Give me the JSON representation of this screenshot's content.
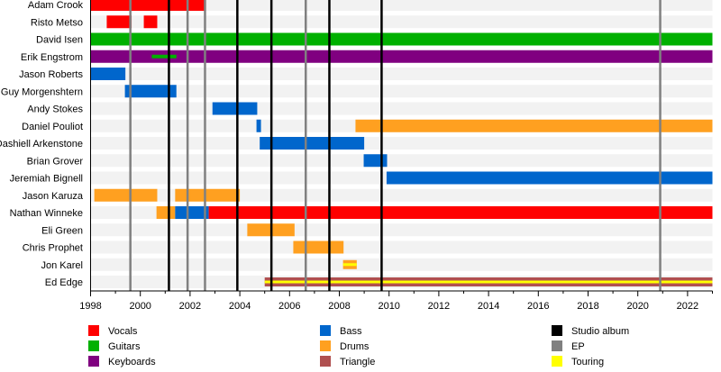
{
  "chart_data": {
    "type": "timeline",
    "xlim": [
      1998,
      2023
    ],
    "x_ticks": [
      "1998",
      "2000",
      "2002",
      "2004",
      "2006",
      "2008",
      "2010",
      "2012",
      "2014",
      "2016",
      "2018",
      "2020",
      "2022"
    ],
    "roles": {
      "Vocals": "#ff0000",
      "Guitars": "#00b000",
      "Keyboards": "#800080",
      "Bass": "#0066cc",
      "Drums": "#ffa020",
      "Triangle": "#b05050",
      "Touring": "#ffff00"
    },
    "members": [
      {
        "name": "Adam Crook",
        "periods": [
          {
            "role": "Vocals",
            "start": 1998.0,
            "end": 2002.64
          }
        ]
      },
      {
        "name": "Risto Metso",
        "periods": [
          {
            "role": "Vocals",
            "start": 1998.65,
            "end": 1999.65
          },
          {
            "role": "Vocals",
            "start": 2000.14,
            "end": 2000.68
          }
        ]
      },
      {
        "name": "David Isen",
        "periods": [
          {
            "role": "Guitars",
            "start": 1998.0,
            "end": 2023.0
          }
        ]
      },
      {
        "name": "Erik Engstrom",
        "periods": [
          {
            "role": "Keyboards",
            "start": 1998.0,
            "end": 2023.0
          },
          {
            "role": "Guitars",
            "start": 2000.46,
            "end": 2001.45,
            "thin": true
          }
        ]
      },
      {
        "name": "Jason Roberts",
        "periods": [
          {
            "role": "Bass",
            "start": 1998.0,
            "end": 1999.4
          }
        ]
      },
      {
        "name": "Guy Morgenshtern",
        "periods": [
          {
            "role": "Bass",
            "start": 1999.38,
            "end": 2001.45
          }
        ]
      },
      {
        "name": "Andy Stokes",
        "periods": [
          {
            "role": "Bass",
            "start": 2002.9,
            "end": 2004.7
          }
        ]
      },
      {
        "name": "Daniel Pouliot",
        "periods": [
          {
            "role": "Bass",
            "start": 2004.67,
            "end": 2004.85
          },
          {
            "role": "Drums",
            "start": 2008.65,
            "end": 2023.0
          }
        ]
      },
      {
        "name": "Dashiell Arkenstone",
        "periods": [
          {
            "role": "Bass",
            "start": 2004.8,
            "end": 2009.0
          }
        ]
      },
      {
        "name": "Brian Grover",
        "periods": [
          {
            "role": "Bass",
            "start": 2008.98,
            "end": 2009.92
          }
        ]
      },
      {
        "name": "Jeremiah Bignell",
        "periods": [
          {
            "role": "Bass",
            "start": 2009.9,
            "end": 2023.0
          }
        ]
      },
      {
        "name": "Jason Karuza",
        "periods": [
          {
            "role": "Drums",
            "start": 1998.15,
            "end": 2000.68
          },
          {
            "role": "Drums",
            "start": 2001.4,
            "end": 2004.0
          }
        ]
      },
      {
        "name": "Nathan Winneke",
        "periods": [
          {
            "role": "Drums",
            "start": 2000.65,
            "end": 2001.4
          },
          {
            "role": "Bass",
            "start": 2001.4,
            "end": 2002.75
          },
          {
            "role": "Vocals",
            "start": 2002.75,
            "end": 2023.0
          }
        ]
      },
      {
        "name": "Eli Green",
        "periods": [
          {
            "role": "Drums",
            "start": 2004.3,
            "end": 2006.2
          }
        ]
      },
      {
        "name": "Chris Prophet",
        "periods": [
          {
            "role": "Drums",
            "start": 2006.15,
            "end": 2008.17
          }
        ]
      },
      {
        "name": "Jon Karel",
        "periods": [
          {
            "role": "Drums",
            "start": 2008.15,
            "end": 2008.7,
            "touring": true
          }
        ]
      },
      {
        "name": "Ed Edge",
        "periods": [
          {
            "role": "Triangle",
            "start": 2005.0,
            "end": 2023.0,
            "touring": true
          }
        ]
      }
    ],
    "events": {
      "Studio album": {
        "color": "#000000",
        "years": [
          2001.15,
          2003.9,
          2005.27,
          2007.6,
          2009.7
        ]
      },
      "EP": {
        "color": "#808080",
        "years": [
          1999.6,
          2001.9,
          2002.6,
          2006.65,
          2020.9
        ]
      }
    },
    "legend": [
      "Vocals",
      "Guitars",
      "Keyboards",
      "Bass",
      "Drums",
      "Triangle",
      "Studio album",
      "EP",
      "Touring"
    ],
    "legend_placement": "bottom"
  }
}
